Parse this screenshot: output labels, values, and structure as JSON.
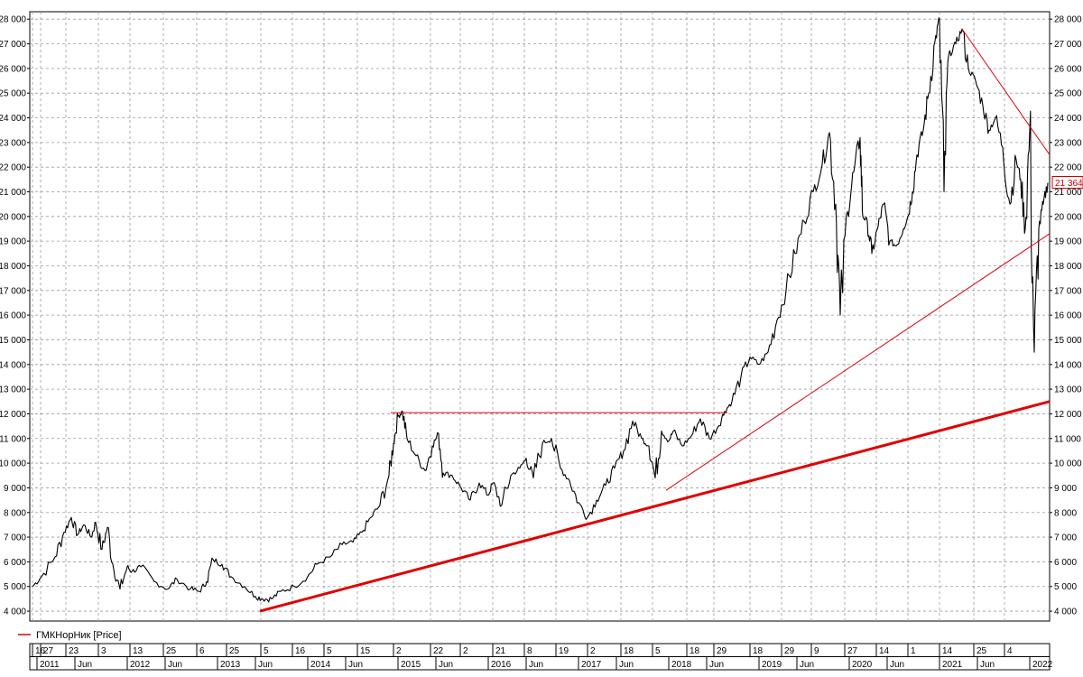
{
  "chart_data": {
    "type": "line",
    "title": "",
    "xlabel": "",
    "ylabel": "",
    "ylim": [
      3600,
      28300
    ],
    "y_ticks": [
      4000,
      5000,
      6000,
      7000,
      8000,
      9000,
      10000,
      11000,
      12000,
      13000,
      14000,
      15000,
      16000,
      17000,
      18000,
      19000,
      20000,
      21000,
      22000,
      23000,
      24000,
      25000,
      26000,
      27000,
      28000
    ],
    "y_tick_labels": [
      "4 000",
      "5 000",
      "6 000",
      "7 000",
      "8 000",
      "9 000",
      "10 000",
      "11 000",
      "12 000",
      "13 000",
      "14 000",
      "15 000",
      "16 000",
      "17 000",
      "18 000",
      "19 000",
      "20 000",
      "21 000",
      "22 000",
      "23 000",
      "24 000",
      "25 000",
      "26 000",
      "27 000",
      "28 000"
    ],
    "xlim": [
      2010.92,
      2022.22
    ],
    "x_top_labels": [
      {
        "x": 2010.95,
        "text": "16"
      },
      {
        "x": 2011.04,
        "text": "27"
      },
      {
        "x": 2011.32,
        "text": "23"
      },
      {
        "x": 2011.68,
        "text": "3"
      },
      {
        "x": 2012.03,
        "text": "13"
      },
      {
        "x": 2012.4,
        "text": "25"
      },
      {
        "x": 2012.77,
        "text": "6"
      },
      {
        "x": 2013.1,
        "text": "25"
      },
      {
        "x": 2013.48,
        "text": "5"
      },
      {
        "x": 2013.83,
        "text": "16"
      },
      {
        "x": 2014.18,
        "text": "5"
      },
      {
        "x": 2014.55,
        "text": "15"
      },
      {
        "x": 2014.95,
        "text": "2"
      },
      {
        "x": 2015.36,
        "text": "22"
      },
      {
        "x": 2015.69,
        "text": "2"
      },
      {
        "x": 2016.05,
        "text": "21"
      },
      {
        "x": 2016.4,
        "text": "8"
      },
      {
        "x": 2016.75,
        "text": "19"
      },
      {
        "x": 2017.1,
        "text": "2"
      },
      {
        "x": 2017.47,
        "text": "18"
      },
      {
        "x": 2017.82,
        "text": "5"
      },
      {
        "x": 2018.2,
        "text": "18"
      },
      {
        "x": 2018.5,
        "text": "29"
      },
      {
        "x": 2018.9,
        "text": "18"
      },
      {
        "x": 2019.25,
        "text": "29"
      },
      {
        "x": 2019.58,
        "text": "9"
      },
      {
        "x": 2019.95,
        "text": "27"
      },
      {
        "x": 2020.3,
        "text": "14"
      },
      {
        "x": 2020.65,
        "text": "1"
      },
      {
        "x": 2021.0,
        "text": "14"
      },
      {
        "x": 2021.38,
        "text": "25"
      },
      {
        "x": 2021.72,
        "text": "4"
      }
    ],
    "x_bottom_labels": [
      {
        "x": 2011.0,
        "text": "2011"
      },
      {
        "x": 2011.42,
        "text": "Jun"
      },
      {
        "x": 2012.0,
        "text": "2012"
      },
      {
        "x": 2012.42,
        "text": "Jun"
      },
      {
        "x": 2013.0,
        "text": "2013"
      },
      {
        "x": 2013.42,
        "text": "Jun"
      },
      {
        "x": 2014.0,
        "text": "2014"
      },
      {
        "x": 2014.42,
        "text": "Jun"
      },
      {
        "x": 2015.0,
        "text": "2015"
      },
      {
        "x": 2015.42,
        "text": "Jun"
      },
      {
        "x": 2016.0,
        "text": "2016"
      },
      {
        "x": 2016.42,
        "text": "Jun"
      },
      {
        "x": 2017.0,
        "text": "2017"
      },
      {
        "x": 2017.42,
        "text": "Jun"
      },
      {
        "x": 2018.0,
        "text": "2018"
      },
      {
        "x": 2018.42,
        "text": "Jun"
      },
      {
        "x": 2019.0,
        "text": "2019"
      },
      {
        "x": 2019.42,
        "text": "Jun"
      },
      {
        "x": 2020.0,
        "text": "2020"
      },
      {
        "x": 2020.42,
        "text": "Jun"
      },
      {
        "x": 2021.0,
        "text": "2021"
      },
      {
        "x": 2021.42,
        "text": "Jun"
      },
      {
        "x": 2022.0,
        "text": "2022"
      }
    ],
    "grid": true,
    "legend": {
      "position": "bottom-left",
      "entries": [
        {
          "name": "ГМКНорНик [Price]",
          "color": "#e00000"
        }
      ]
    },
    "last_price_label": "21 364",
    "series": [
      {
        "name": "ГМКНорНик [Price]",
        "color": "#000000",
        "x": [
          2010.95,
          2011.05,
          2011.2,
          2011.3,
          2011.38,
          2011.45,
          2011.52,
          2011.6,
          2011.65,
          2011.72,
          2011.78,
          2011.85,
          2011.92,
          2012.0,
          2012.05,
          2012.15,
          2012.3,
          2012.45,
          2012.55,
          2012.7,
          2012.8,
          2012.88,
          2012.95,
          2013.05,
          2013.15,
          2013.3,
          2013.42,
          2013.5,
          2013.6,
          2013.7,
          2013.85,
          2014.0,
          2014.1,
          2014.25,
          2014.38,
          2014.5,
          2014.6,
          2014.7,
          2014.8,
          2014.9,
          2014.95,
          2015.0,
          2015.05,
          2015.1,
          2015.2,
          2015.3,
          2015.38,
          2015.45,
          2015.5,
          2015.6,
          2015.7,
          2015.8,
          2015.9,
          2016.0,
          2016.05,
          2016.15,
          2016.25,
          2016.35,
          2016.42,
          2016.5,
          2016.6,
          2016.7,
          2016.8,
          2016.9,
          2017.0,
          2017.1,
          2017.2,
          2017.3,
          2017.4,
          2017.5,
          2017.6,
          2017.7,
          2017.78,
          2017.85,
          2017.92,
          2018.0,
          2018.05,
          2018.15,
          2018.25,
          2018.35,
          2018.45,
          2018.55,
          2018.62,
          2018.7,
          2018.8,
          2018.9,
          2019.0,
          2019.1,
          2019.2,
          2019.3,
          2019.4,
          2019.5,
          2019.6,
          2019.7,
          2019.78,
          2019.85,
          2019.9,
          2019.98,
          2020.05,
          2020.12,
          2020.15,
          2020.2,
          2020.25,
          2020.32,
          2020.38,
          2020.45,
          2020.52,
          2020.6,
          2020.65,
          2020.7,
          2020.75,
          2020.82,
          2020.88,
          2020.95,
          2021.0,
          2021.05,
          2021.1,
          2021.18,
          2021.25,
          2021.32,
          2021.4,
          2021.48,
          2021.55,
          2021.62,
          2021.7,
          2021.78,
          2021.85,
          2021.9,
          2021.95,
          2022.0,
          2022.05,
          2022.1,
          2022.15,
          2022.2
        ],
        "y": [
          5000,
          5400,
          6200,
          7200,
          7800,
          7100,
          7500,
          7000,
          7600,
          6500,
          7400,
          5700,
          4900,
          5800,
          5600,
          5800,
          5200,
          4900,
          5300,
          4900,
          4800,
          5200,
          6100,
          5900,
          5400,
          5000,
          4600,
          4500,
          4500,
          4800,
          5000,
          5400,
          5900,
          6200,
          6700,
          6800,
          7200,
          7800,
          8300,
          9500,
          10800,
          11900,
          12100,
          11000,
          10300,
          9700,
          10700,
          11200,
          9600,
          9500,
          9000,
          8500,
          9200,
          8700,
          9200,
          8300,
          9500,
          9800,
          10200,
          9400,
          10800,
          11000,
          9800,
          9300,
          8400,
          7800,
          8500,
          9100,
          9800,
          10500,
          11700,
          11000,
          10700,
          9400,
          11300,
          10900,
          11300,
          10700,
          11100,
          11800,
          11000,
          11500,
          12100,
          12500,
          13500,
          14300,
          14000,
          14500,
          15800,
          17000,
          18500,
          19800,
          21000,
          22100,
          23400,
          20500,
          16000,
          20200,
          21800,
          23200,
          20000,
          19800,
          18500,
          19600,
          20500,
          19000,
          18800,
          19500,
          20000,
          21000,
          22500,
          23500,
          25000,
          27100,
          28000,
          21000,
          26500,
          27000,
          27600,
          26000,
          25500,
          24500,
          23500,
          24000,
          22800,
          20500,
          22300,
          21500,
          19500,
          23500,
          14500,
          19500,
          20500,
          21364
        ]
      }
    ],
    "trendlines": [
      {
        "x1": 2013.47,
        "y1": 4000,
        "x2": 2022.22,
        "y2": 12500,
        "color": "#e00000",
        "width": 3
      },
      {
        "x1": 2014.92,
        "y1": 12050,
        "x2": 2018.65,
        "y2": 12050,
        "color": "#e00000",
        "width": 1
      },
      {
        "x1": 2017.97,
        "y1": 8900,
        "x2": 2022.22,
        "y2": 19300,
        "color": "#e00000",
        "width": 1
      },
      {
        "x1": 2021.25,
        "y1": 27600,
        "x2": 2022.22,
        "y2": 22500,
        "color": "#e00000",
        "width": 1
      }
    ]
  }
}
